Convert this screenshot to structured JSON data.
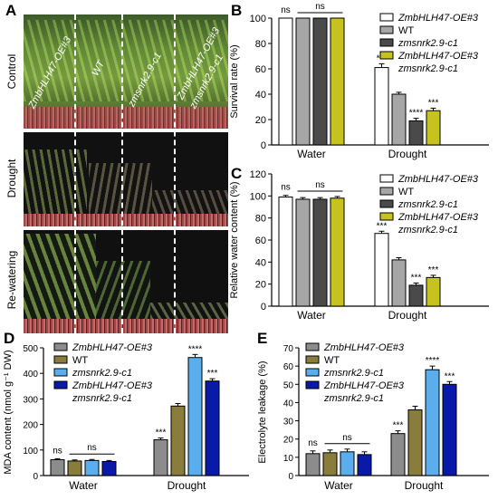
{
  "panels": {
    "A": "A",
    "B": "B",
    "C": "C",
    "D": "D",
    "E": "E"
  },
  "photo": {
    "rows": [
      "Control",
      "Drought",
      "Re-watering"
    ],
    "plant_labels": [
      "ZmbHLH47-OE#3",
      "WT",
      "zmsnrk2.9-c1",
      "ZmbHLH47-OE#3",
      "zmsnrk2.9-c1"
    ]
  },
  "colors": {
    "bw": {
      "s1": "#ffffff",
      "s2": "#a6a6a6",
      "s3": "#4a4a4a",
      "s4": "#c6c21e"
    },
    "color": {
      "s1": "#8c8c8c",
      "s2": "#8a7d3c",
      "s3": "#5aaeee",
      "s4": "#0a1aa8"
    }
  },
  "chart_data": [
    {
      "panel": "B",
      "type": "bar",
      "categories": [
        "Water",
        "Drought"
      ],
      "series": [
        {
          "name": "ZmbHLH47-OE#3",
          "values": [
            100,
            61
          ],
          "errors": [
            0,
            3
          ]
        },
        {
          "name": "WT",
          "values": [
            100,
            40
          ],
          "errors": [
            0,
            1.5
          ]
        },
        {
          "name": "zmsnrk2.9-c1",
          "values": [
            100,
            19
          ],
          "errors": [
            0,
            2
          ]
        },
        {
          "name": "ZmbHLH47-OE#3 zmsnrk2.9-c1",
          "values": [
            100,
            27
          ],
          "errors": [
            0,
            2
          ]
        }
      ],
      "ylabel": "Survival rate (%)",
      "ylim": [
        0,
        100
      ],
      "yticks": [
        0,
        20,
        40,
        60,
        80,
        100
      ],
      "annotations": {
        "water": [
          "ns",
          "ns"
        ],
        "drought": [
          "***",
          "",
          "****",
          "***"
        ]
      },
      "legend": [
        "ZmbHLH47-OE#3",
        "WT",
        "zmsnrk2.9-c1",
        "ZmbHLH47-OE#3",
        "zmsnrk2.9-c1"
      ]
    },
    {
      "panel": "C",
      "type": "bar",
      "categories": [
        "Water",
        "Drought"
      ],
      "series": [
        {
          "name": "ZmbHLH47-OE#3",
          "values": [
            99,
            66
          ],
          "errors": [
            1.5,
            2
          ]
        },
        {
          "name": "WT",
          "values": [
            97,
            42
          ],
          "errors": [
            1.5,
            2
          ]
        },
        {
          "name": "zmsnrk2.9-c1",
          "values": [
            97,
            19
          ],
          "errors": [
            1.5,
            2
          ]
        },
        {
          "name": "ZmbHLH47-OE#3 zmsnrk2.9-c1",
          "values": [
            98,
            26
          ],
          "errors": [
            1.5,
            2
          ]
        }
      ],
      "ylabel": "Relative water content (%)",
      "ylim": [
        0,
        120
      ],
      "yticks": [
        0,
        20,
        40,
        60,
        80,
        100,
        120
      ],
      "annotations": {
        "water": [
          "ns",
          "ns"
        ],
        "drought": [
          "***",
          "",
          "***",
          "***"
        ]
      },
      "legend": [
        "ZmbHLH47-OE#3",
        "WT",
        "zmsnrk2.9-c1",
        "ZmbHLH47-OE#3",
        "zmsnrk2.9-c1"
      ]
    },
    {
      "panel": "D",
      "type": "bar",
      "categories": [
        "Water",
        "Drought"
      ],
      "series": [
        {
          "name": "ZmbHLH47-OE#3",
          "values": [
            62,
            140
          ],
          "errors": [
            4,
            7
          ]
        },
        {
          "name": "WT",
          "values": [
            57,
            272
          ],
          "errors": [
            4,
            10
          ]
        },
        {
          "name": "zmsnrk2.9-c1",
          "values": [
            59,
            462
          ],
          "errors": [
            4,
            12
          ]
        },
        {
          "name": "ZmbHLH47-OE#3 zmsnrk2.9-c1",
          "values": [
            55,
            370
          ],
          "errors": [
            4,
            9
          ]
        }
      ],
      "ylabel": "MDA  content (nmol g⁻¹ DW)",
      "ylim": [
        0,
        500
      ],
      "yticks": [
        0,
        100,
        200,
        300,
        400,
        500
      ],
      "annotations": {
        "water": [
          "ns",
          "ns"
        ],
        "drought": [
          "***",
          "",
          "****",
          "***"
        ]
      },
      "legend": [
        "ZmbHLH47-OE#3",
        "WT",
        "zmsnrk2.9-c1",
        "ZmbHLH47-OE#3",
        "zmsnrk2.9-c1"
      ]
    },
    {
      "panel": "E",
      "type": "bar",
      "categories": [
        "Water",
        "Drought"
      ],
      "series": [
        {
          "name": "ZmbHLH47-OE#3",
          "values": [
            12,
            23
          ],
          "errors": [
            1.5,
            1.5
          ]
        },
        {
          "name": "WT",
          "values": [
            12.5,
            36
          ],
          "errors": [
            1.5,
            2
          ]
        },
        {
          "name": "zmsnrk2.9-c1",
          "values": [
            13,
            58
          ],
          "errors": [
            1.5,
            2
          ]
        },
        {
          "name": "ZmbHLH47-OE#3 zmsnrk2.9-c1",
          "values": [
            11.5,
            50
          ],
          "errors": [
            1.5,
            1.5
          ]
        }
      ],
      "ylabel": "Electrolyte leakage (%)",
      "ylim": [
        0,
        70
      ],
      "yticks": [
        0,
        10,
        20,
        30,
        40,
        50,
        60,
        70
      ],
      "annotations": {
        "water": [
          "ns",
          "ns"
        ],
        "drought": [
          "***",
          "",
          "****",
          "***"
        ]
      },
      "legend": [
        "ZmbHLH47-OE#3",
        "WT",
        "zmsnrk2.9-c1",
        "ZmbHLH47-OE#3",
        "zmsnrk2.9-c1"
      ]
    }
  ]
}
